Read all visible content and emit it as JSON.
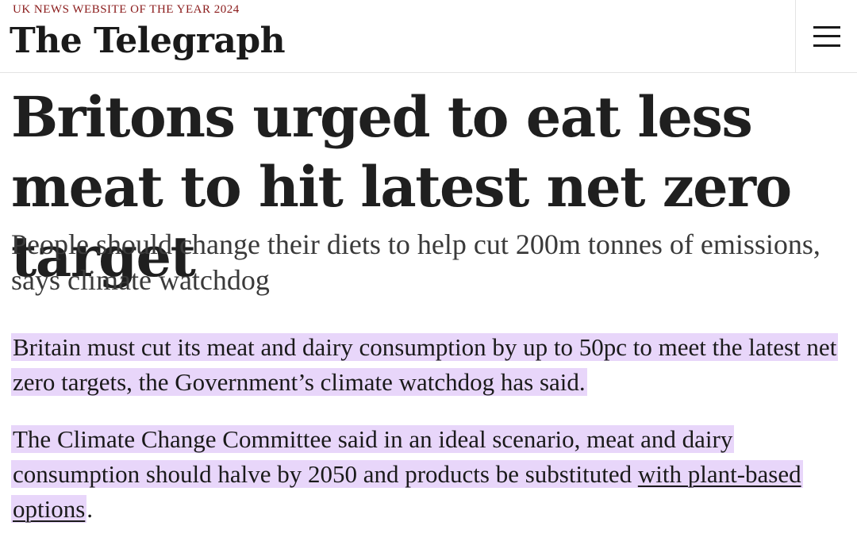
{
  "header": {
    "tagline": "UK NEWS WEBSITE OF THE YEAR 2024",
    "logo": "The Telegraph",
    "menu_icon": "hamburger-menu-icon"
  },
  "article": {
    "headline": "Britons urged to eat less meat to hit latest net zero target",
    "standfirst": "People should change their diets to help cut 200m tonnes of emissions, says climate watchdog",
    "paragraph1": "Britain must cut its meat and dairy consumption by up to 50pc to meet the latest net zero targets, the Government’s climate watchdog has said.",
    "paragraph2_text": "The Climate Change Committee said in an ideal scenario, meat and dairy consumption should halve by 2050 and products be substituted ",
    "paragraph2_link": "with plant-based options",
    "paragraph2_end": "."
  },
  "colors": {
    "highlight": "#e8d6fa",
    "tagline": "#8a1a1a",
    "text": "#1a1a1a"
  }
}
